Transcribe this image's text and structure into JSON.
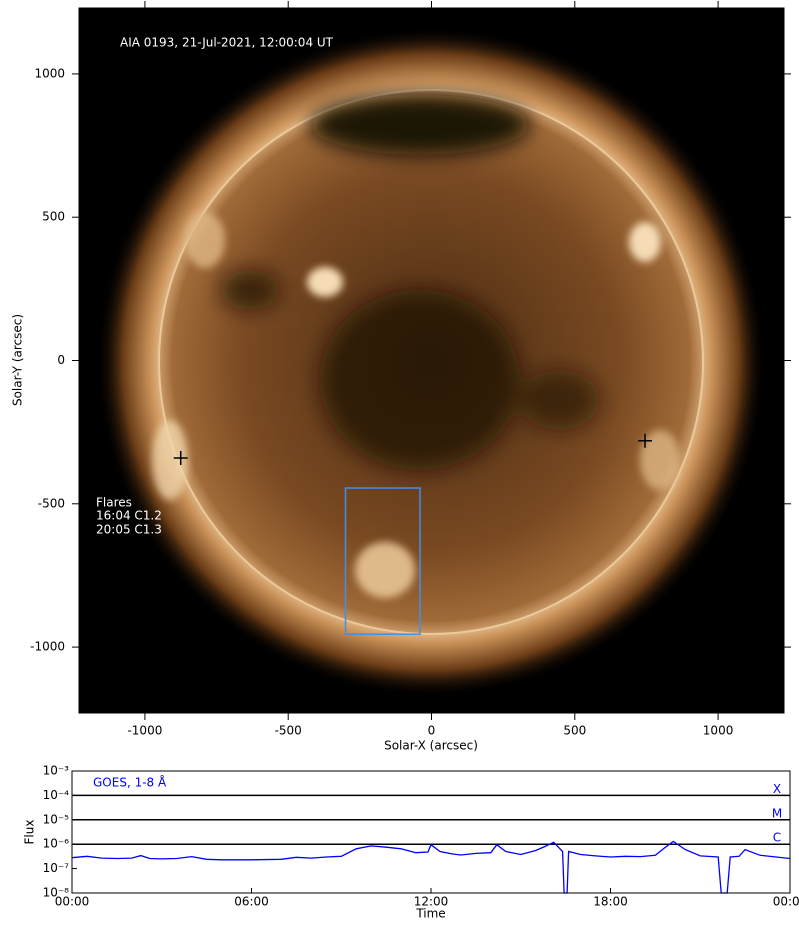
{
  "chart_data": [
    {
      "type": "image",
      "title": "AIA 0193, 21-Jul-2021, 12:00:04 UT",
      "xlabel": "Solar-X (arcsec)",
      "ylabel": "Solar-Y (arcsec)",
      "xlim": [
        -1230,
        1230
      ],
      "ylim": [
        -1230,
        1230
      ],
      "xticks": [
        -1000,
        -500,
        0,
        500,
        1000
      ],
      "yticks": [
        -1000,
        -500,
        0,
        500,
        1000
      ],
      "annotations": [
        "Flares",
        "16:04 C1.2",
        "20:05 C1.3"
      ],
      "markers": {
        "x": [
          -875,
          745
        ],
        "y": [
          -340,
          -280
        ],
        "color": "#000000"
      },
      "box": {
        "x": [
          -300,
          -40
        ],
        "y": [
          -955,
          -445
        ],
        "color": "#3f8fef"
      }
    },
    {
      "type": "line",
      "xlabel": "Time",
      "ylabel": "Flux",
      "legend": "GOES, 1-8 Å",
      "yscale": "log",
      "xlim": [
        0,
        24
      ],
      "ylim": [
        1e-08,
        0.001
      ],
      "xticks": [
        {
          "value": 0,
          "label": "00:00"
        },
        {
          "value": 6,
          "label": "06:00"
        },
        {
          "value": 12,
          "label": "12:00"
        },
        {
          "value": 18,
          "label": "18:00"
        },
        {
          "value": 24,
          "label": "00:00"
        }
      ],
      "yticks": [
        {
          "value": 1e-08,
          "label": "10⁻⁸"
        },
        {
          "value": 1e-07,
          "label": "10⁻⁷"
        },
        {
          "value": 1e-06,
          "label": "10⁻⁶"
        },
        {
          "value": 1e-05,
          "label": "10⁻⁵"
        },
        {
          "value": 0.0001,
          "label": "10⁻⁴"
        },
        {
          "value": 0.001,
          "label": "10⁻³"
        }
      ],
      "levels": [
        {
          "value": 0.0001,
          "label": "X"
        },
        {
          "value": 1e-05,
          "label": "M"
        },
        {
          "value": 1e-06,
          "label": "C"
        }
      ],
      "color": "#0000ff",
      "x": [
        0,
        0.5,
        1,
        1.5,
        2,
        2.3,
        2.6,
        3,
        3.5,
        4,
        4.5,
        5,
        6,
        7,
        7.5,
        8,
        8.5,
        9,
        9.5,
        10,
        10.5,
        11,
        11.5,
        11.9,
        12,
        12.3,
        12.7,
        13,
        13.5,
        14,
        14.2,
        14.5,
        15,
        15.5,
        15.8,
        16.1,
        16.4,
        16.45,
        16.55,
        16.6,
        17,
        17.5,
        18,
        18.5,
        19,
        19.5,
        19.8,
        20.1,
        20.5,
        21,
        21.6,
        21.7,
        21.9,
        22,
        22.3,
        22.5,
        23,
        24
      ],
      "values": [
        2.8e-07,
        3.2e-07,
        2.7e-07,
        2.6e-07,
        2.7e-07,
        3.4e-07,
        2.6e-07,
        2.5e-07,
        2.6e-07,
        3.1e-07,
        2.4e-07,
        2.3e-07,
        2.3e-07,
        2.4e-07,
        2.9e-07,
        2.7e-07,
        3e-07,
        3.2e-07,
        6.5e-07,
        8.5e-07,
        7.5e-07,
        6.5e-07,
        4.5e-07,
        4.8e-07,
        9.5e-07,
        5e-07,
        4e-07,
        3.6e-07,
        4.2e-07,
        4.5e-07,
        9.5e-07,
        5e-07,
        3.8e-07,
        5.5e-07,
        8e-07,
        1.2e-06,
        5e-07,
        1e-08,
        1e-08,
        5e-07,
        3.8e-07,
        3.3e-07,
        3e-07,
        3.2e-07,
        3.1e-07,
        3.5e-07,
        7e-07,
        1.3e-06,
        6e-07,
        3.3e-07,
        3e-07,
        1e-08,
        1e-08,
        3e-07,
        3.2e-07,
        6e-07,
        3.5e-07,
        2.6e-07
      ]
    }
  ]
}
